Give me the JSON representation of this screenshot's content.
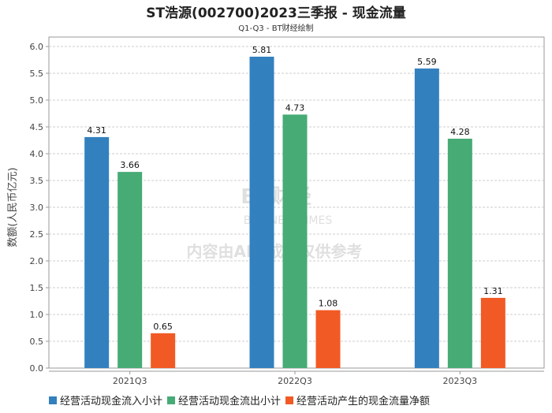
{
  "chart_data": {
    "type": "bar",
    "title": "ST浩源(002700)2023三季报 - 现金流量",
    "subtitle": "Q1-Q3 - BT财经绘制",
    "xlabel": "",
    "ylabel": "数额(人民币亿元)",
    "ylim": [
      0,
      6.0
    ],
    "yticks": [
      "0.0",
      "0.5",
      "1.0",
      "1.5",
      "2.0",
      "2.5",
      "3.0",
      "3.5",
      "4.0",
      "4.5",
      "5.0",
      "5.5",
      "6.0"
    ],
    "grid": true,
    "legend_position": "bottom",
    "categories": [
      "2021Q3",
      "2022Q3",
      "2023Q3"
    ],
    "series": [
      {
        "name": "经营活动现金流入小计",
        "values": [
          4.31,
          5.81,
          5.59
        ],
        "color": "#3380bf"
      },
      {
        "name": "经营活动现金流出小计",
        "values": [
          3.66,
          4.73,
          4.28
        ],
        "color": "#46ab75"
      },
      {
        "name": "经营活动产生的现金流量净额",
        "values": [
          0.65,
          1.08,
          1.31
        ],
        "color": "#f15a24"
      }
    ]
  },
  "watermark": {
    "brand": "BT财经",
    "brand_en": "BUSINESSTIMES",
    "notice": "内容由AI生成，仅供参考"
  }
}
